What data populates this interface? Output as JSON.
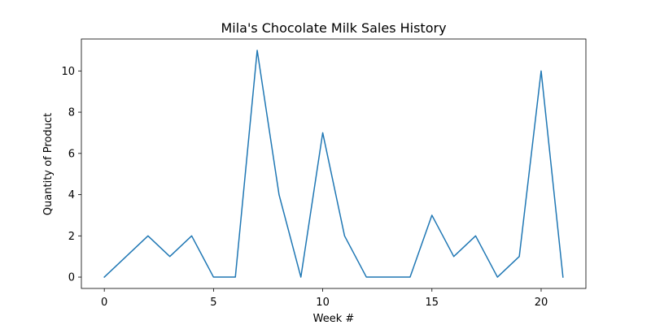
{
  "chart_data": {
    "type": "line",
    "title": "Mila's Chocolate Milk Sales History",
    "xlabel": "Week #",
    "ylabel": "Quantity of Product",
    "xlim": [
      -1.05,
      22.05
    ],
    "ylim": [
      -0.55,
      11.55
    ],
    "xticks": [
      0,
      5,
      10,
      15,
      20
    ],
    "xtick_labels": [
      "0",
      "5",
      "10",
      "15",
      "20"
    ],
    "yticks": [
      0,
      2,
      4,
      6,
      8,
      10
    ],
    "ytick_labels": [
      "0",
      "2",
      "4",
      "6",
      "8",
      "10"
    ],
    "grid": false,
    "series": [
      {
        "color": "#1f77b4",
        "x": [
          0,
          1,
          2,
          3,
          4,
          5,
          6,
          7,
          8,
          9,
          10,
          11,
          12,
          13,
          14,
          15,
          16,
          17,
          18,
          19,
          20,
          21
        ],
        "values": [
          0,
          1,
          2,
          1,
          2,
          0,
          0,
          11,
          4,
          0,
          7,
          2,
          0,
          0,
          0,
          3,
          1,
          2,
          0,
          1,
          10,
          0
        ]
      }
    ]
  }
}
